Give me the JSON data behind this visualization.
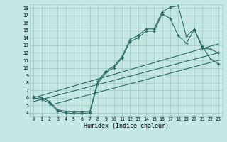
{
  "xlabel": "Humidex (Indice chaleur)",
  "background_color": "#c5e8e5",
  "grid_color": "#a0c8c5",
  "line_color": "#2a6b65",
  "xlim": [
    -0.5,
    23.5
  ],
  "ylim": [
    3.5,
    18.5
  ],
  "xticks": [
    0,
    1,
    2,
    3,
    4,
    5,
    6,
    7,
    8,
    9,
    10,
    11,
    12,
    13,
    14,
    15,
    16,
    17,
    18,
    19,
    20,
    21,
    22,
    23
  ],
  "yticks": [
    4,
    5,
    6,
    7,
    8,
    9,
    10,
    11,
    12,
    13,
    14,
    15,
    16,
    17,
    18
  ],
  "curve1_x": [
    0,
    1,
    2,
    3,
    4,
    5,
    6,
    7,
    8,
    9,
    10,
    11,
    12,
    13,
    14,
    15,
    16,
    17,
    18,
    19,
    20,
    21,
    22,
    23
  ],
  "curve1_y": [
    6.2,
    6.0,
    5.5,
    4.4,
    4.2,
    4.1,
    4.1,
    4.2,
    8.2,
    9.6,
    10.2,
    11.5,
    13.8,
    14.3,
    15.2,
    15.2,
    17.5,
    18.1,
    18.3,
    14.2,
    15.2,
    12.6,
    12.5,
    12.0
  ],
  "curve2_x": [
    0,
    1,
    2,
    3,
    4,
    5,
    6,
    7,
    8,
    9,
    10,
    11,
    12,
    13,
    14,
    15,
    16,
    17,
    18,
    19,
    20,
    21,
    22,
    23
  ],
  "curve2_y": [
    6.0,
    5.8,
    5.3,
    4.2,
    4.0,
    3.9,
    3.9,
    4.0,
    7.9,
    9.4,
    10.0,
    11.3,
    13.5,
    14.0,
    14.9,
    14.9,
    17.2,
    16.6,
    14.3,
    13.3,
    15.1,
    12.9,
    11.2,
    10.5
  ],
  "line1_x": [
    0,
    23
  ],
  "line1_y": [
    6.0,
    13.2
  ],
  "line2_x": [
    0,
    23
  ],
  "line2_y": [
    5.5,
    12.0
  ],
  "line3_x": [
    2,
    23
  ],
  "line3_y": [
    5.0,
    11.0
  ]
}
